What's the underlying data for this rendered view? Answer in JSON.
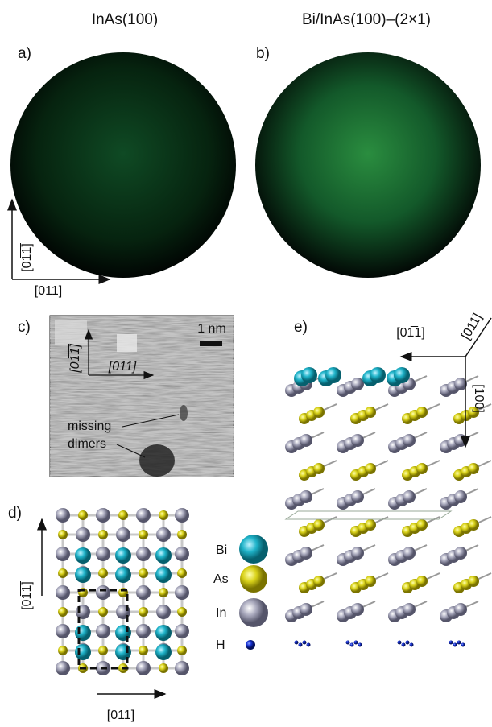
{
  "panels": [
    {
      "label": "a)",
      "title": "InAs(100)"
    },
    {
      "label": "b)",
      "title": "Bi/InAs(100)–(2×1)"
    },
    {
      "label": "c)",
      "scale_bar": "1 nm",
      "directions": [
        "[01̅1̅]",
        "[011]"
      ],
      "annotation": [
        "missing",
        "dimers"
      ]
    },
    {
      "label": "d)",
      "directions": [
        "[01̅1̅]",
        "[011]"
      ],
      "legend": [
        "Bi",
        "As",
        "In",
        "H"
      ]
    },
    {
      "label": "e)",
      "directions": [
        "[01̅1]",
        "[011]",
        "[100]"
      ]
    }
  ],
  "leed_axes": [
    "[01̅1̅]",
    "[011]"
  ]
}
